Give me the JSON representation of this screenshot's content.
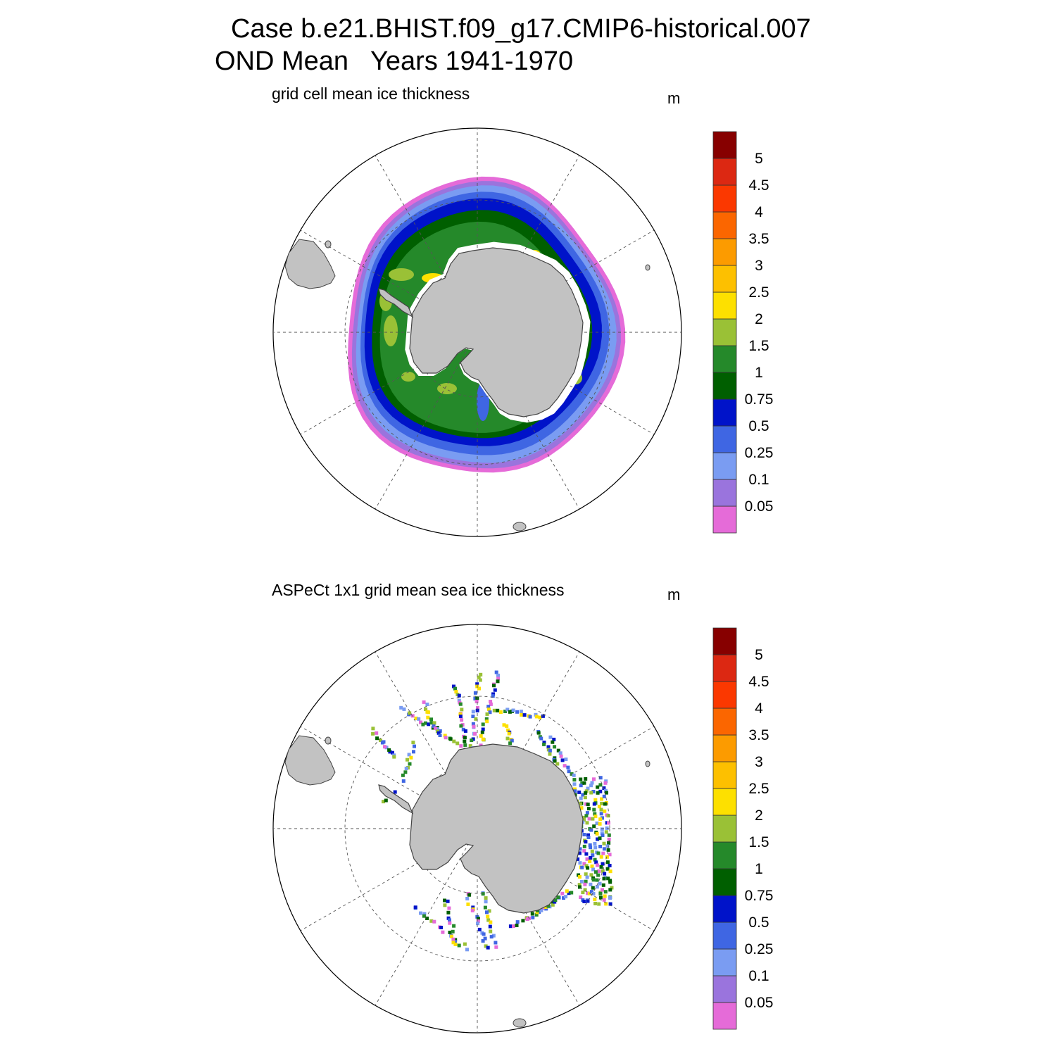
{
  "header": {
    "case_line": "Case b.e21.BHIST.f09_g17.CMIP6-historical.007",
    "period_line": "OND Mean   Years 1941-1970"
  },
  "panels": [
    {
      "title": "grid cell mean ice thickness",
      "unit": "m"
    },
    {
      "title": "ASPeCt 1x1 grid mean sea ice thickness",
      "unit": "m"
    }
  ],
  "colorbar": {
    "labels": [
      "0.05",
      "0.1",
      "0.25",
      "0.5",
      "0.75",
      "1",
      "1.5",
      "2",
      "2.5",
      "3",
      "3.5",
      "4",
      "4.5",
      "5"
    ],
    "colors": [
      "#e56bd8",
      "#9a74dd",
      "#7a9cf2",
      "#3f66e3",
      "#0013c9",
      "#005f00",
      "#25892a",
      "#9ac136",
      "#fde000",
      "#fdc000",
      "#fc9b00",
      "#fb6600",
      "#fb3800",
      "#dc2812",
      "#870000"
    ]
  },
  "map_colors": {
    "land": "#c2c2c2",
    "land_outline": "#444444",
    "grid_line": "#555555"
  }
}
